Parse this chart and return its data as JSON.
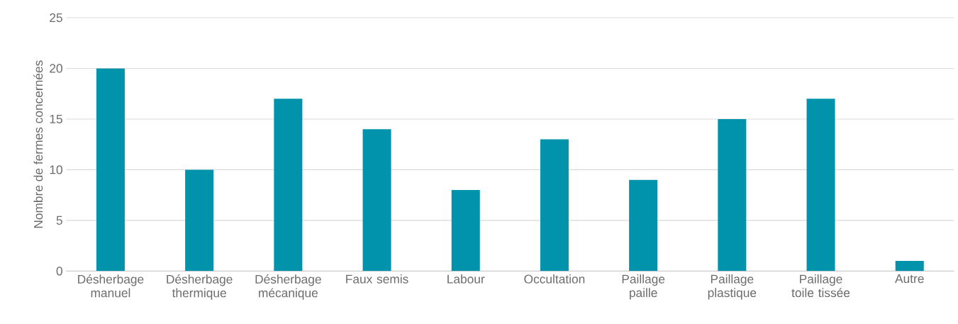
{
  "chart_data": {
    "type": "bar",
    "ylabel": "Nombre de fermes concernées",
    "categories": [
      "Désherbage manuel",
      "Désherbage thermique",
      "Désherbage mécanique",
      "Faux semis",
      "Labour",
      "Occultation",
      "Paillage paille",
      "Paillage plastique",
      "Paillage toile tissée",
      "Autre"
    ],
    "values": [
      20,
      10,
      17,
      14,
      8,
      13,
      9,
      15,
      17,
      1
    ],
    "color": "#0093ab",
    "ylim": [
      0,
      25
    ],
    "yticks": [
      0,
      5,
      10,
      15,
      20,
      25
    ],
    "grid": "y"
  }
}
